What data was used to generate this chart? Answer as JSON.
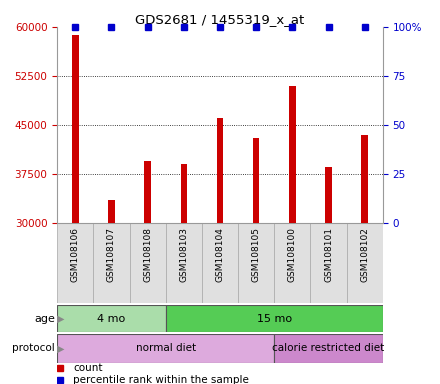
{
  "title": "GDS2681 / 1455319_x_at",
  "samples": [
    "GSM108106",
    "GSM108107",
    "GSM108108",
    "GSM108103",
    "GSM108104",
    "GSM108105",
    "GSM108100",
    "GSM108101",
    "GSM108102"
  ],
  "counts": [
    58800,
    33500,
    39500,
    39000,
    46000,
    43000,
    51000,
    38500,
    43500
  ],
  "ylim": [
    30000,
    60000
  ],
  "yticks": [
    30000,
    37500,
    45000,
    52500,
    60000
  ],
  "right_yticks": [
    0,
    25,
    50,
    75,
    100
  ],
  "right_ylabels": [
    "0",
    "25",
    "50",
    "75",
    "100%"
  ],
  "bar_color": "#cc0000",
  "dot_color": "#0000cc",
  "age_groups": [
    {
      "label": "4 mo",
      "start": 0,
      "end": 3,
      "color": "#aaddaa"
    },
    {
      "label": "15 mo",
      "start": 3,
      "end": 9,
      "color": "#55cc55"
    }
  ],
  "protocol_groups": [
    {
      "label": "normal diet",
      "start": 0,
      "end": 6,
      "color": "#ddaadd"
    },
    {
      "label": "calorie restricted diet",
      "start": 6,
      "end": 9,
      "color": "#cc88cc"
    }
  ],
  "bg_color": "#ffffff",
  "left_tick_color": "#cc0000",
  "right_tick_color": "#0000cc",
  "legend_count_label": "count",
  "legend_pct_label": "percentile rank within the sample"
}
